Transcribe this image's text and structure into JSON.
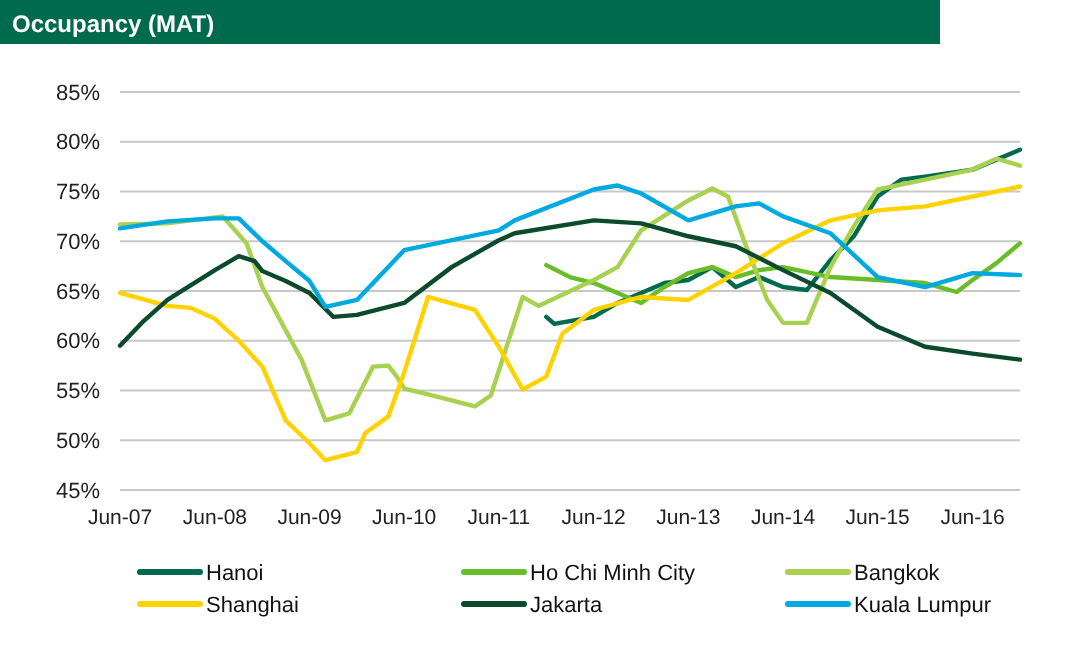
{
  "chart_data": {
    "type": "line",
    "title": "Occupancy (MAT)",
    "xlim": [
      "2007-06",
      "2016-12"
    ],
    "xticks": [
      {
        "value": "2007-06",
        "label": "Jun-07"
      },
      {
        "value": "2008-06",
        "label": "Jun-08"
      },
      {
        "value": "2009-06",
        "label": "Jun-09"
      },
      {
        "value": "2010-06",
        "label": "Jun-10"
      },
      {
        "value": "2011-06",
        "label": "Jun-11"
      },
      {
        "value": "2012-06",
        "label": "Jun-12"
      },
      {
        "value": "2013-06",
        "label": "Jun-13"
      },
      {
        "value": "2014-06",
        "label": "Jun-14"
      },
      {
        "value": "2015-06",
        "label": "Jun-15"
      },
      {
        "value": "2016-06",
        "label": "Jun-16"
      }
    ],
    "ylim": [
      45,
      85
    ],
    "yticks": [
      {
        "value": 45,
        "label": "45%"
      },
      {
        "value": 50,
        "label": "50%"
      },
      {
        "value": 55,
        "label": "55%"
      },
      {
        "value": 60,
        "label": "60%"
      },
      {
        "value": 65,
        "label": "65%"
      },
      {
        "value": 70,
        "label": "70%"
      },
      {
        "value": 75,
        "label": "75%"
      },
      {
        "value": 80,
        "label": "80%"
      },
      {
        "value": 85,
        "label": "85%"
      }
    ],
    "grid": "y",
    "legend": "bottom",
    "marker": "none",
    "line_style": "solid",
    "series": [
      {
        "name": "Hanoi",
        "color": "#006a4d",
        "x": [
          "2011-12",
          "2012-01",
          "2012-06",
          "2012-09",
          "2012-12",
          "2013-03",
          "2013-06",
          "2013-09",
          "2013-12",
          "2014-03",
          "2014-06",
          "2014-09",
          "2014-12",
          "2015-03",
          "2015-06",
          "2015-09",
          "2015-12",
          "2016-06",
          "2016-12"
        ],
        "values": [
          62.4,
          61.7,
          62.4,
          63.8,
          64.8,
          65.8,
          66.1,
          67.4,
          65.4,
          66.4,
          65.4,
          65.1,
          68.1,
          70.5,
          74.5,
          76.2,
          76.5,
          77.2,
          79.2
        ]
      },
      {
        "name": "Ho Chi Minh City",
        "color": "#69be28",
        "x": [
          "2011-12",
          "2012-03",
          "2012-06",
          "2012-09",
          "2012-12",
          "2013-03",
          "2013-06",
          "2013-09",
          "2013-12",
          "2014-03",
          "2014-06",
          "2014-12",
          "2015-06",
          "2015-12",
          "2016-04",
          "2016-06",
          "2016-09",
          "2016-12"
        ],
        "values": [
          67.6,
          66.4,
          65.8,
          64.8,
          63.8,
          65.4,
          66.8,
          67.4,
          66.4,
          67.1,
          67.4,
          66.4,
          66.1,
          65.8,
          64.9,
          66.1,
          67.8,
          69.8
        ]
      },
      {
        "name": "Bangkok",
        "color": "#a8d14f",
        "x": [
          "2007-06",
          "2007-12",
          "2008-07",
          "2008-10",
          "2008-12",
          "2009-05",
          "2009-08",
          "2009-11",
          "2010-02",
          "2010-04",
          "2010-05",
          "2010-06",
          "2010-09",
          "2010-12",
          "2011-03",
          "2011-05",
          "2011-09",
          "2011-11",
          "2012-06",
          "2012-09",
          "2012-12",
          "2013-06",
          "2013-09",
          "2013-11",
          "2014-01",
          "2014-04",
          "2014-06",
          "2014-09",
          "2014-12",
          "2015-03",
          "2015-06",
          "2015-12",
          "2016-06",
          "2016-09",
          "2016-12"
        ],
        "values": [
          71.7,
          71.8,
          72.5,
          69.8,
          65.4,
          58.1,
          52.0,
          52.7,
          57.4,
          57.5,
          56.5,
          55.2,
          54.6,
          54.0,
          53.4,
          54.5,
          64.4,
          63.5,
          66.1,
          67.4,
          71.1,
          74.1,
          75.3,
          74.5,
          70.1,
          64.1,
          61.8,
          61.8,
          67.4,
          71.5,
          75.2,
          76.2,
          77.2,
          78.3,
          77.6
        ]
      },
      {
        "name": "Shanghai",
        "color": "#ffd200",
        "x": [
          "2007-06",
          "2007-12",
          "2008-03",
          "2008-06",
          "2008-09",
          "2008-12",
          "2009-03",
          "2009-06",
          "2009-08",
          "2009-12",
          "2010-01",
          "2010-04",
          "2010-06",
          "2010-09",
          "2011-03",
          "2011-06",
          "2011-09",
          "2011-12",
          "2012-02",
          "2012-06",
          "2012-12",
          "2013-06",
          "2013-12",
          "2014-06",
          "2014-12",
          "2015-06",
          "2015-12",
          "2016-06",
          "2016-12"
        ],
        "values": [
          64.8,
          63.5,
          63.3,
          62.2,
          60.0,
          57.4,
          52.0,
          49.7,
          48.0,
          48.8,
          50.7,
          52.4,
          56.8,
          64.4,
          63.1,
          59.4,
          55.1,
          56.4,
          60.7,
          63.1,
          64.4,
          64.1,
          66.8,
          69.8,
          72.1,
          73.1,
          73.5,
          74.5,
          75.5
        ]
      },
      {
        "name": "Jakarta",
        "color": "#0b4a2c",
        "x": [
          "2007-06",
          "2007-09",
          "2007-12",
          "2008-06",
          "2008-09",
          "2008-11",
          "2008-12",
          "2009-03",
          "2009-06",
          "2009-09",
          "2009-12",
          "2010-06",
          "2010-12",
          "2011-06",
          "2011-08",
          "2012-06",
          "2012-12",
          "2013-06",
          "2013-12",
          "2014-06",
          "2014-12",
          "2015-06",
          "2015-12",
          "2016-06",
          "2016-12"
        ],
        "values": [
          59.5,
          62.0,
          64.1,
          67.1,
          68.5,
          68.0,
          67.0,
          66.0,
          64.8,
          62.4,
          62.6,
          63.8,
          67.4,
          70.1,
          70.8,
          72.1,
          71.8,
          70.5,
          69.5,
          67.1,
          64.8,
          61.4,
          59.4,
          58.7,
          58.1
        ]
      },
      {
        "name": "Kuala Lumpur",
        "color": "#00a9e0",
        "x": [
          "2007-06",
          "2007-12",
          "2008-06",
          "2008-09",
          "2008-12",
          "2009-03",
          "2009-06",
          "2009-08",
          "2009-12",
          "2010-06",
          "2011-06",
          "2011-08",
          "2012-06",
          "2012-09",
          "2012-12",
          "2013-06",
          "2013-09",
          "2013-12",
          "2014-03",
          "2014-06",
          "2014-12",
          "2015-06",
          "2015-12",
          "2016-06",
          "2016-12"
        ],
        "values": [
          71.3,
          72.0,
          72.3,
          72.3,
          70.0,
          68.0,
          66.0,
          63.4,
          64.1,
          69.1,
          71.1,
          72.1,
          75.2,
          75.6,
          74.8,
          72.1,
          72.8,
          73.5,
          73.8,
          72.5,
          70.8,
          66.4,
          65.4,
          66.8,
          66.6
        ]
      }
    ]
  }
}
